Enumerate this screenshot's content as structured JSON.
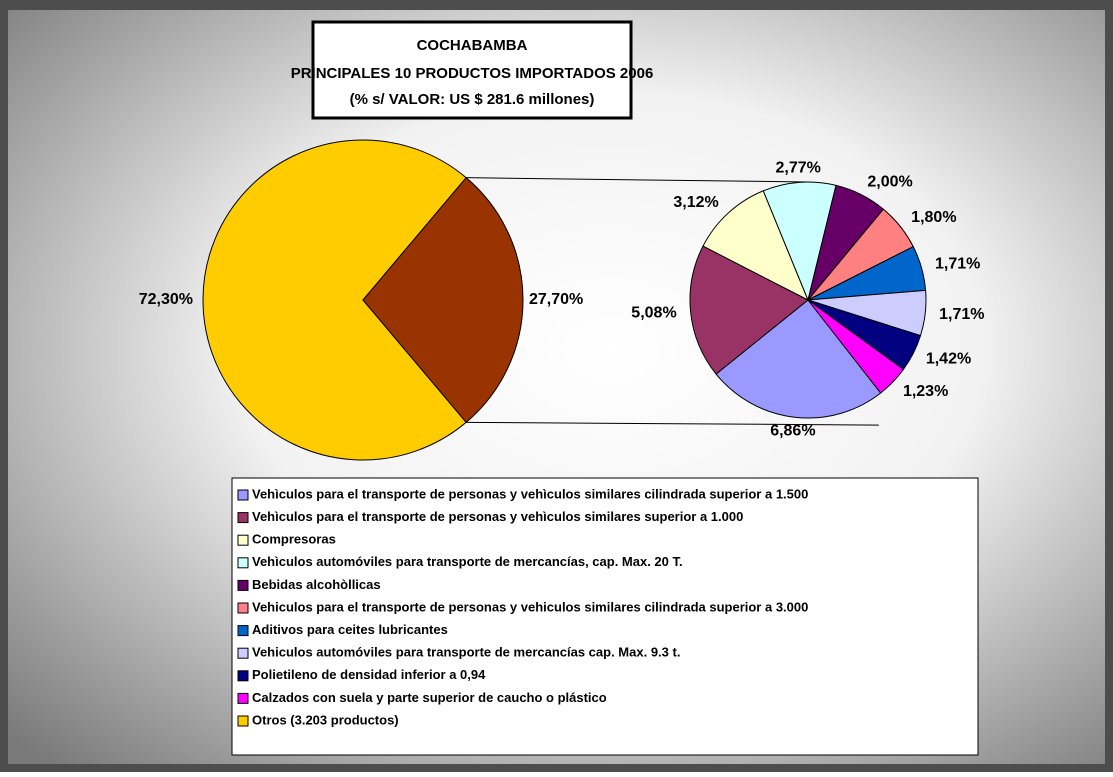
{
  "chart_data": {
    "type": "pie",
    "title": [
      "COCHABAMBA",
      "PRINCIPALES 10 PRODUCTOS IMPORTADOS  2006",
      "(% s/ VALOR: US $ 281.6 millones)"
    ],
    "categories": [
      "Vehìculos para el transporte de personas y vehìculos similares cilindrada superior a 1.500",
      "Vehìculos para el transporte de personas y vehìculos similares superior a 1.000",
      "Compresoras",
      "Vehìculos automóviles para transporte de mercancías, cap. Max.  20  T.",
      "Bebidas alcohòllicas",
      "Vehiculos para el transporte de personas y vehiculos similares cilindrada superior a 3.000",
      "Aditivos para ceites lubricantes",
      "Vehiculos automóviles para transporte de mercancías cap. Max.  9.3 t.",
      "Polietileno de densidad inferior a 0,94",
      "Calzados con suela y parte superior de caucho o plástico",
      "Otros  (3.203 productos)"
    ],
    "values": [
      6.86,
      5.08,
      3.12,
      2.77,
      2.0,
      1.8,
      1.71,
      1.71,
      1.42,
      1.23,
      72.3
    ],
    "value_labels": [
      "6,86%",
      "5,08%",
      "3,12%",
      "2,77%",
      "2,00%",
      "1,80%",
      "1,71%",
      "1,71%",
      "1,42%",
      "1,23%",
      "72,30%"
    ],
    "colors": [
      "#9999ff",
      "#993366",
      "#ffffcc",
      "#ccffff",
      "#660066",
      "#ff8080",
      "#0066cc",
      "#ccccff",
      "#000080",
      "#ff00ff",
      "#ffcc00"
    ],
    "group": {
      "value": 27.7,
      "value_label": "27,70%",
      "color": "#993300"
    }
  }
}
